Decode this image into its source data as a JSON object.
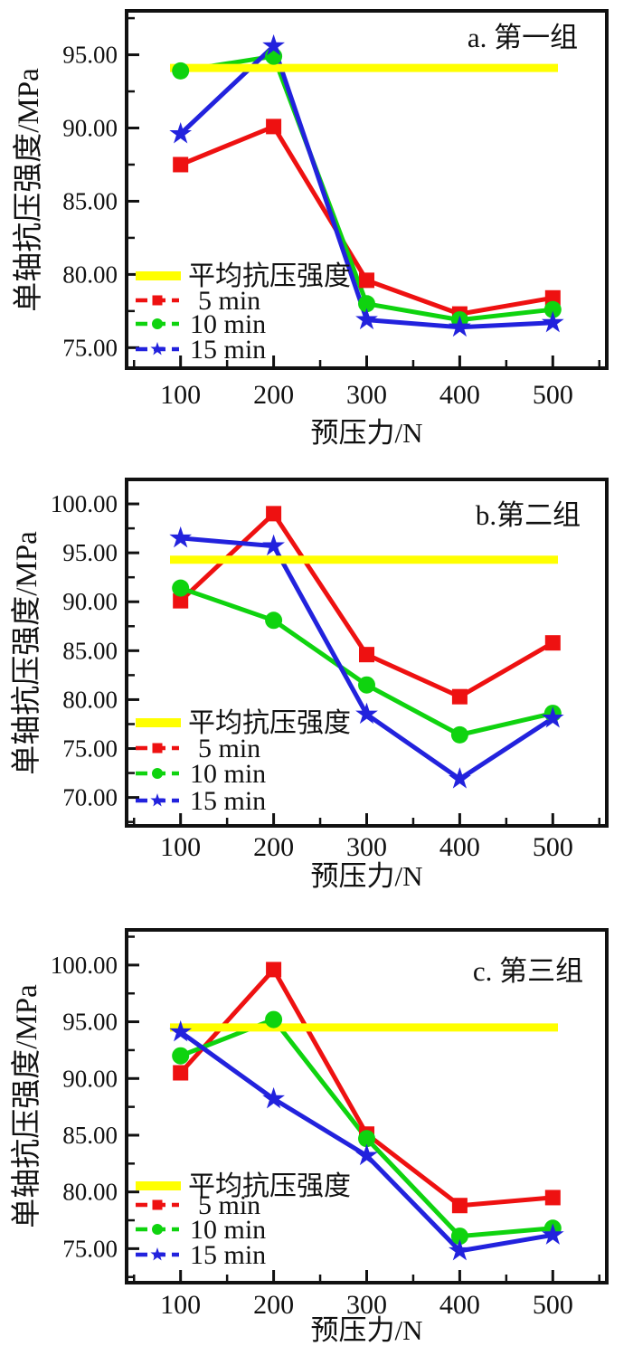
{
  "figure": {
    "background": "#ffffff",
    "text_color": "#111111",
    "frame_color": "#111111"
  },
  "chart_data": [
    {
      "type": "line",
      "panel": "a",
      "title": "a. 第一组",
      "xlabel": "预压力/N",
      "ylabel": "单轴抗压强度/MPa",
      "x": [
        100,
        200,
        300,
        400,
        500
      ],
      "xticks": [
        100,
        200,
        300,
        400,
        500
      ],
      "yticks": [
        75,
        80,
        85,
        90,
        95
      ],
      "xlim": [
        42,
        558
      ],
      "ylim": [
        73.6,
        98.0
      ],
      "grid": false,
      "legend_position": "lower-left-inside",
      "average_line": {
        "label": "平均抗压强度",
        "value": 94.1,
        "color": "#ffff00"
      },
      "series": [
        {
          "name": "5 min",
          "color": "#ee1111",
          "marker": "square",
          "values": [
            87.5,
            90.1,
            79.6,
            77.3,
            78.4
          ]
        },
        {
          "name": "10 min",
          "color": "#0fd30f",
          "marker": "circle",
          "values": [
            93.9,
            94.9,
            78.0,
            76.9,
            77.6
          ]
        },
        {
          "name": "15 min",
          "color": "#2222dd",
          "marker": "star",
          "values": [
            89.6,
            95.6,
            76.9,
            76.4,
            76.7
          ]
        }
      ]
    },
    {
      "type": "line",
      "panel": "b",
      "title": "b.第二组",
      "xlabel": "预压力/N",
      "ylabel": "单轴抗压强度/MPa",
      "x": [
        100,
        200,
        300,
        400,
        500
      ],
      "xticks": [
        100,
        200,
        300,
        400,
        500
      ],
      "yticks": [
        70,
        75,
        80,
        85,
        90,
        95,
        100
      ],
      "xlim": [
        42,
        558
      ],
      "ylim": [
        67.1,
        102.5
      ],
      "grid": false,
      "legend_position": "lower-left-inside",
      "average_line": {
        "label": "平均抗压强度",
        "value": 94.3,
        "color": "#ffff00"
      },
      "series": [
        {
          "name": "5 min",
          "color": "#ee1111",
          "marker": "square",
          "values": [
            90.1,
            99.0,
            84.6,
            80.3,
            85.8
          ]
        },
        {
          "name": "10 min",
          "color": "#0fd30f",
          "marker": "circle",
          "values": [
            91.4,
            88.1,
            81.5,
            76.4,
            78.6
          ]
        },
        {
          "name": "15 min",
          "color": "#2222dd",
          "marker": "star",
          "values": [
            96.5,
            95.7,
            78.5,
            71.9,
            78.1
          ]
        }
      ]
    },
    {
      "type": "line",
      "panel": "c",
      "title": "c. 第三组",
      "xlabel": "预压力/N",
      "ylabel": "单轴抗压强度/MPa",
      "x": [
        100,
        200,
        300,
        400,
        500
      ],
      "xticks": [
        100,
        200,
        300,
        400,
        500
      ],
      "yticks": [
        75,
        80,
        85,
        90,
        95,
        100
      ],
      "xlim": [
        42,
        558
      ],
      "ylim": [
        72.0,
        103.1
      ],
      "grid": false,
      "legend_position": "lower-left-inside",
      "average_line": {
        "label": "平均抗压强度",
        "value": 94.5,
        "color": "#ffff00"
      },
      "series": [
        {
          "name": "5 min",
          "color": "#ee1111",
          "marker": "square",
          "values": [
            90.5,
            99.6,
            85.1,
            78.8,
            79.5
          ]
        },
        {
          "name": "10 min",
          "color": "#0fd30f",
          "marker": "circle",
          "values": [
            92.0,
            95.2,
            84.7,
            76.1,
            76.8
          ]
        },
        {
          "name": "15 min",
          "color": "#2222dd",
          "marker": "star",
          "values": [
            94.1,
            88.2,
            83.2,
            74.8,
            76.2
          ]
        }
      ]
    }
  ]
}
